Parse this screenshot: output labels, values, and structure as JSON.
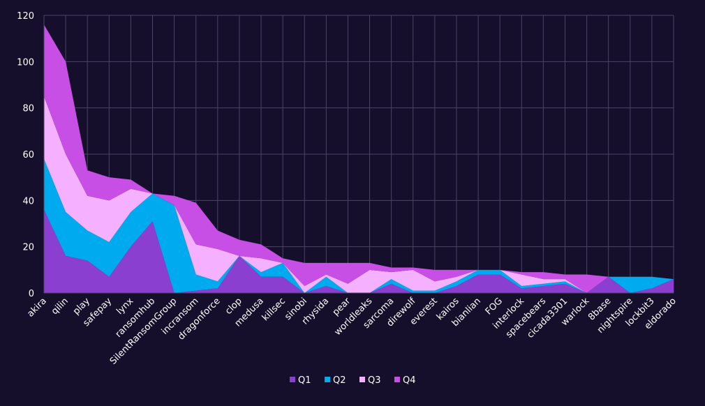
{
  "chart_data": {
    "type": "area",
    "stacked": true,
    "title": "",
    "xlabel": "",
    "ylabel": "",
    "ylim": [
      0,
      120
    ],
    "yticks": [
      0,
      20,
      40,
      60,
      80,
      100,
      120
    ],
    "grid": true,
    "legend_position": "bottom",
    "categories": [
      "akira",
      "qilin",
      "play",
      "safepay",
      "lynx",
      "ransomhub",
      "SilentRansomGroup",
      "incransom",
      "dragonforce",
      "clop",
      "medusa",
      "killsec",
      "sinobi",
      "rhysida",
      "pear",
      "worldleaks",
      "sarcoma",
      "direwolf",
      "everest",
      "kairos",
      "bianlian",
      "FOG",
      "interlock",
      "spacebears",
      "cicada3301",
      "warlock",
      "8base",
      "nightspire",
      "lockbit3",
      "eldorado"
    ],
    "series": [
      {
        "name": "Q1",
        "color": "#8a3fd1",
        "values": [
          36,
          16,
          14,
          7,
          20,
          31,
          0,
          1,
          2,
          16,
          7,
          7,
          0,
          3,
          0,
          0,
          4,
          0,
          0,
          3,
          8,
          8,
          2,
          3,
          4,
          0,
          7,
          0,
          2,
          6
        ]
      },
      {
        "name": "Q2",
        "color": "#00aaee",
        "values": [
          22,
          19,
          13,
          15,
          15,
          12,
          38,
          7,
          3,
          0,
          2,
          6,
          0,
          4,
          0,
          0,
          2,
          1,
          1,
          2,
          2,
          2,
          1,
          1,
          1,
          0,
          0,
          7,
          5,
          0
        ]
      },
      {
        "name": "Q3",
        "color": "#f5b0ff",
        "values": [
          27,
          25,
          15,
          18,
          10,
          0,
          0,
          13,
          14,
          0,
          6,
          0,
          3,
          1,
          4,
          10,
          3,
          9,
          4,
          2,
          0,
          0,
          5,
          2,
          1,
          0,
          0,
          0,
          0,
          0
        ]
      },
      {
        "name": "Q4",
        "color": "#c84fe6",
        "values": [
          31,
          40,
          11,
          10,
          4,
          0,
          4,
          18,
          8,
          7,
          6,
          2,
          10,
          5,
          9,
          3,
          2,
          1,
          5,
          3,
          0,
          0,
          1,
          3,
          2,
          8,
          0,
          0,
          0,
          0
        ]
      }
    ]
  }
}
